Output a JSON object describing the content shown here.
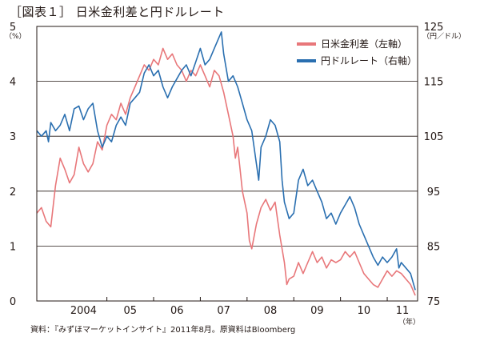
{
  "title": "［図表１］ 日米金利差と円ドルレート",
  "source": "資料：『みずほマーケットインサイト』2011年8月。原資料はBloomberg",
  "chart_data": {
    "type": "line",
    "left_axis": {
      "unit": "（%）",
      "min": 0,
      "max": 5,
      "ticks": [
        0,
        1,
        2,
        3,
        4,
        5
      ]
    },
    "right_axis": {
      "unit": "（円／ドル）",
      "min": 75,
      "max": 125,
      "ticks": [
        75,
        85,
        95,
        105,
        115,
        125
      ]
    },
    "x_axis": {
      "start": 2003.5,
      "end": 2011.65,
      "labels": [
        {
          "text": "2004",
          "year": 2004
        },
        {
          "text": "05",
          "year": 2005
        },
        {
          "text": "06",
          "year": 2006
        },
        {
          "text": "07",
          "year": 2007
        },
        {
          "text": "08",
          "year": 2008
        },
        {
          "text": "09",
          "year": 2009
        },
        {
          "text": "10",
          "year": 2010
        },
        {
          "text": "11",
          "year": 2011
        }
      ],
      "unit": "（年）"
    },
    "grid": true,
    "legend_position": "top-right",
    "series": [
      {
        "name": "日米金利差（左軸）",
        "axis": "left",
        "color": "#e8777a",
        "points": [
          [
            2003.5,
            1.6
          ],
          [
            2003.6,
            1.7
          ],
          [
            2003.7,
            1.45
          ],
          [
            2003.8,
            1.35
          ],
          [
            2003.9,
            2.1
          ],
          [
            2004.0,
            2.6
          ],
          [
            2004.1,
            2.4
          ],
          [
            2004.2,
            2.15
          ],
          [
            2004.3,
            2.3
          ],
          [
            2004.4,
            2.8
          ],
          [
            2004.5,
            2.5
          ],
          [
            2004.6,
            2.35
          ],
          [
            2004.7,
            2.5
          ],
          [
            2004.8,
            2.9
          ],
          [
            2004.9,
            2.75
          ],
          [
            2005.0,
            3.2
          ],
          [
            2005.1,
            3.4
          ],
          [
            2005.2,
            3.3
          ],
          [
            2005.3,
            3.6
          ],
          [
            2005.4,
            3.4
          ],
          [
            2005.5,
            3.7
          ],
          [
            2005.6,
            3.9
          ],
          [
            2005.7,
            4.1
          ],
          [
            2005.8,
            4.3
          ],
          [
            2005.9,
            4.2
          ],
          [
            2006.0,
            4.4
          ],
          [
            2006.1,
            4.3
          ],
          [
            2006.2,
            4.6
          ],
          [
            2006.3,
            4.4
          ],
          [
            2006.4,
            4.5
          ],
          [
            2006.5,
            4.3
          ],
          [
            2006.6,
            4.2
          ],
          [
            2006.7,
            4.0
          ],
          [
            2006.8,
            4.2
          ],
          [
            2006.9,
            4.1
          ],
          [
            2007.0,
            4.3
          ],
          [
            2007.1,
            4.1
          ],
          [
            2007.2,
            3.9
          ],
          [
            2007.3,
            4.2
          ],
          [
            2007.4,
            4.1
          ],
          [
            2007.5,
            3.8
          ],
          [
            2007.6,
            3.4
          ],
          [
            2007.7,
            3.0
          ],
          [
            2007.75,
            2.6
          ],
          [
            2007.8,
            2.8
          ],
          [
            2007.85,
            2.4
          ],
          [
            2007.9,
            2.0
          ],
          [
            2008.0,
            1.6
          ],
          [
            2008.05,
            1.1
          ],
          [
            2008.1,
            0.95
          ],
          [
            2008.2,
            1.4
          ],
          [
            2008.3,
            1.7
          ],
          [
            2008.4,
            1.85
          ],
          [
            2008.5,
            1.65
          ],
          [
            2008.6,
            1.8
          ],
          [
            2008.65,
            1.5
          ],
          [
            2008.7,
            1.2
          ],
          [
            2008.8,
            0.7
          ],
          [
            2008.85,
            0.3
          ],
          [
            2008.9,
            0.4
          ],
          [
            2009.0,
            0.45
          ],
          [
            2009.1,
            0.7
          ],
          [
            2009.2,
            0.5
          ],
          [
            2009.3,
            0.7
          ],
          [
            2009.4,
            0.9
          ],
          [
            2009.5,
            0.7
          ],
          [
            2009.6,
            0.8
          ],
          [
            2009.7,
            0.6
          ],
          [
            2009.8,
            0.75
          ],
          [
            2009.9,
            0.7
          ],
          [
            2010.0,
            0.75
          ],
          [
            2010.1,
            0.9
          ],
          [
            2010.2,
            0.8
          ],
          [
            2010.3,
            0.9
          ],
          [
            2010.4,
            0.7
          ],
          [
            2010.5,
            0.5
          ],
          [
            2010.6,
            0.4
          ],
          [
            2010.7,
            0.3
          ],
          [
            2010.8,
            0.25
          ],
          [
            2010.9,
            0.4
          ],
          [
            2011.0,
            0.55
          ],
          [
            2011.1,
            0.45
          ],
          [
            2011.2,
            0.55
          ],
          [
            2011.3,
            0.5
          ],
          [
            2011.4,
            0.4
          ],
          [
            2011.5,
            0.3
          ],
          [
            2011.6,
            0.1
          ]
        ]
      },
      {
        "name": "円ドルレート（右軸）",
        "axis": "right",
        "color": "#2a6fb0",
        "points": [
          [
            2003.5,
            106
          ],
          [
            2003.6,
            105
          ],
          [
            2003.7,
            106
          ],
          [
            2003.75,
            104
          ],
          [
            2003.8,
            107.5
          ],
          [
            2003.9,
            106
          ],
          [
            2004.0,
            107
          ],
          [
            2004.1,
            109
          ],
          [
            2004.2,
            106
          ],
          [
            2004.3,
            110
          ],
          [
            2004.4,
            110.5
          ],
          [
            2004.5,
            108
          ],
          [
            2004.6,
            110
          ],
          [
            2004.7,
            111
          ],
          [
            2004.8,
            106
          ],
          [
            2004.9,
            103
          ],
          [
            2005.0,
            105
          ],
          [
            2005.1,
            104
          ],
          [
            2005.2,
            107
          ],
          [
            2005.3,
            108.5
          ],
          [
            2005.4,
            107
          ],
          [
            2005.5,
            111
          ],
          [
            2005.6,
            112
          ],
          [
            2005.7,
            113
          ],
          [
            2005.8,
            116.5
          ],
          [
            2005.9,
            118
          ],
          [
            2006.0,
            116
          ],
          [
            2006.1,
            117
          ],
          [
            2006.2,
            114
          ],
          [
            2006.3,
            112
          ],
          [
            2006.4,
            114
          ],
          [
            2006.5,
            115.5
          ],
          [
            2006.6,
            117
          ],
          [
            2006.7,
            118
          ],
          [
            2006.8,
            116
          ],
          [
            2006.9,
            118.5
          ],
          [
            2007.0,
            121
          ],
          [
            2007.1,
            118
          ],
          [
            2007.2,
            119
          ],
          [
            2007.3,
            121
          ],
          [
            2007.4,
            123
          ],
          [
            2007.45,
            124
          ],
          [
            2007.5,
            120
          ],
          [
            2007.6,
            115
          ],
          [
            2007.7,
            116
          ],
          [
            2007.8,
            114
          ],
          [
            2007.9,
            111
          ],
          [
            2008.0,
            108
          ],
          [
            2008.1,
            106
          ],
          [
            2008.2,
            100
          ],
          [
            2008.25,
            97
          ],
          [
            2008.3,
            103
          ],
          [
            2008.4,
            105
          ],
          [
            2008.5,
            108
          ],
          [
            2008.6,
            107
          ],
          [
            2008.7,
            104
          ],
          [
            2008.75,
            97
          ],
          [
            2008.8,
            93
          ],
          [
            2008.9,
            90
          ],
          [
            2009.0,
            91
          ],
          [
            2009.1,
            97
          ],
          [
            2009.2,
            99
          ],
          [
            2009.3,
            96
          ],
          [
            2009.4,
            97
          ],
          [
            2009.5,
            95
          ],
          [
            2009.6,
            93
          ],
          [
            2009.7,
            90
          ],
          [
            2009.8,
            91
          ],
          [
            2009.9,
            89
          ],
          [
            2010.0,
            91
          ],
          [
            2010.1,
            92.5
          ],
          [
            2010.2,
            94
          ],
          [
            2010.3,
            92
          ],
          [
            2010.4,
            89
          ],
          [
            2010.5,
            87
          ],
          [
            2010.6,
            85
          ],
          [
            2010.7,
            83
          ],
          [
            2010.8,
            81.5
          ],
          [
            2010.9,
            83
          ],
          [
            2011.0,
            82
          ],
          [
            2011.1,
            83
          ],
          [
            2011.2,
            84.5
          ],
          [
            2011.25,
            81
          ],
          [
            2011.3,
            82
          ],
          [
            2011.4,
            81
          ],
          [
            2011.5,
            80
          ],
          [
            2011.6,
            77
          ]
        ]
      }
    ]
  }
}
